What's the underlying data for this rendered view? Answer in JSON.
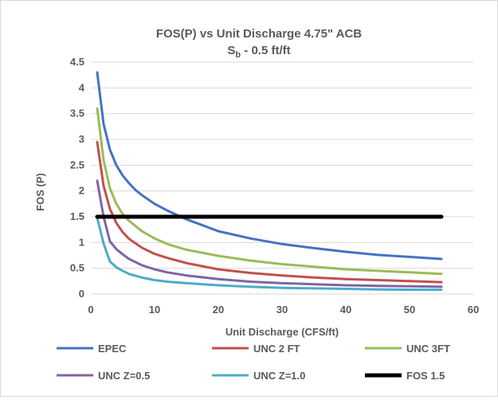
{
  "chart_data": {
    "type": "line",
    "title": "FOS(P) vs Unit Discharge 4.75\" ACB",
    "subtitle": {
      "main": "S",
      "sub": "b",
      "rest": " - 0.5 ft/ft"
    },
    "xlabel": "Unit Discharge (CFS/ft)",
    "ylabel": "FOS (P)",
    "xlim": [
      0,
      60
    ],
    "ylim": [
      0,
      4.5
    ],
    "xticks": [
      0,
      10,
      20,
      30,
      40,
      50,
      60
    ],
    "yticks": [
      0,
      0.5,
      1,
      1.5,
      2,
      2.5,
      3,
      3.5,
      4,
      4.5
    ],
    "xtick_labels": [
      "0",
      "10",
      "20",
      "30",
      "40",
      "50",
      "60"
    ],
    "ytick_labels": [
      "0",
      "0.5",
      "1",
      "1.5",
      "2",
      "2.5",
      "3",
      "3.5",
      "4",
      "4.5"
    ],
    "grid": "horizontal",
    "legend_position": "bottom",
    "series": [
      {
        "name": "EPEC",
        "color": "#4472C4",
        "x": [
          1,
          2,
          3,
          4,
          5,
          6,
          7,
          8,
          10,
          12,
          15,
          20,
          25,
          30,
          35,
          40,
          45,
          50,
          55
        ],
        "y": [
          4.3,
          3.3,
          2.8,
          2.5,
          2.3,
          2.15,
          2.02,
          1.92,
          1.75,
          1.62,
          1.45,
          1.22,
          1.08,
          0.97,
          0.89,
          0.82,
          0.76,
          0.72,
          0.68
        ]
      },
      {
        "name": "UNC 2 FT",
        "color": "#C0504D",
        "x": [
          1,
          2,
          3,
          4,
          5,
          6,
          8,
          10,
          12,
          15,
          20,
          25,
          30,
          35,
          40,
          45,
          50,
          55
        ],
        "y": [
          2.95,
          2.1,
          1.65,
          1.38,
          1.2,
          1.07,
          0.9,
          0.78,
          0.7,
          0.6,
          0.48,
          0.41,
          0.36,
          0.32,
          0.29,
          0.27,
          0.25,
          0.23
        ]
      },
      {
        "name": "UNC 3FT",
        "color": "#9BBB59",
        "x": [
          1,
          2,
          3,
          4,
          5,
          6,
          8,
          10,
          12,
          15,
          20,
          25,
          30,
          35,
          40,
          45,
          50,
          55
        ],
        "y": [
          3.6,
          2.6,
          2.05,
          1.75,
          1.55,
          1.42,
          1.22,
          1.08,
          0.97,
          0.86,
          0.74,
          0.65,
          0.58,
          0.53,
          0.48,
          0.45,
          0.42,
          0.39
        ]
      },
      {
        "name": "UNC Z=0.5",
        "color": "#8064A2",
        "x": [
          1,
          2,
          3,
          4,
          5,
          6,
          8,
          10,
          12,
          15,
          20,
          25,
          30,
          35,
          40,
          45,
          50,
          55
        ],
        "y": [
          2.2,
          1.5,
          1.02,
          0.87,
          0.77,
          0.68,
          0.56,
          0.48,
          0.42,
          0.36,
          0.29,
          0.24,
          0.21,
          0.19,
          0.17,
          0.16,
          0.15,
          0.14
        ]
      },
      {
        "name": "UNC Z=1.0",
        "color": "#4BACC6",
        "x": [
          1,
          2,
          3,
          4,
          5,
          6,
          8,
          10,
          12,
          15,
          20,
          25,
          30,
          35,
          40,
          45,
          50,
          55
        ],
        "y": [
          1.48,
          0.98,
          0.63,
          0.52,
          0.45,
          0.39,
          0.32,
          0.27,
          0.24,
          0.21,
          0.17,
          0.14,
          0.12,
          0.11,
          0.1,
          0.09,
          0.085,
          0.08
        ]
      },
      {
        "name": "FOS 1.5",
        "color": "#000000",
        "x": [
          1,
          55
        ],
        "y": [
          1.5,
          1.5
        ]
      }
    ]
  }
}
